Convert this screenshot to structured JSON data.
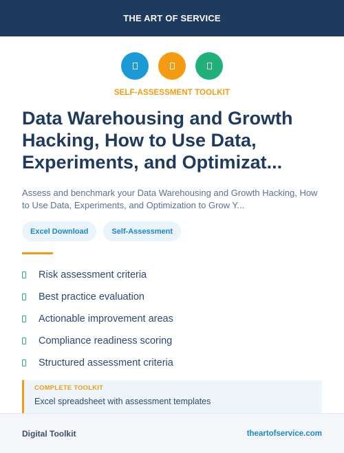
{
  "header": {
    "title": "THE ART OF SERVICE"
  },
  "icons": [
    {
      "name": "document-icon",
      "color": "#1a9ad6"
    },
    {
      "name": "document-icon",
      "color": "#f39c12"
    },
    {
      "name": "document-icon",
      "color": "#22b07a"
    }
  ],
  "eyebrow": {
    "text": "SELF-ASSESSMENT TOOLKIT",
    "color": "#f39c12"
  },
  "title": "Data Warehousing and Growth Hacking, How to Use Data, Experiments, and Optimizat...",
  "subtitle": "Assess and benchmark your Data Warehousing and Growth Hacking, How to Use Data, Experiments, and Optimization to Grow Y...",
  "tags": [
    "Excel Download",
    "Self-Assessment"
  ],
  "divider_color": "#f39c12",
  "features": [
    "Risk assessment criteria",
    "Best practice evaluation",
    "Actionable improvement areas",
    "Compliance readiness scoring",
    "Structured assessment criteria"
  ],
  "toolkit": {
    "label": "COMPLETE TOOLKIT",
    "description": "Excel spreadsheet with assessment templates",
    "accent": "#f39c12"
  },
  "footer": {
    "left": "Digital Toolkit",
    "right": "theartofservice.com"
  }
}
